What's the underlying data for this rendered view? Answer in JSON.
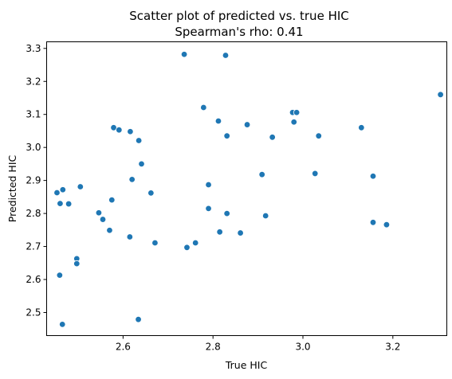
{
  "chart_data": {
    "type": "scatter",
    "title": "Scatter plot of predicted vs. true HIC",
    "subtitle": "Spearman's rho: 0.41",
    "xlabel": "True HIC",
    "ylabel": "Predicted HIC",
    "xlim": [
      2.43,
      3.32
    ],
    "ylim": [
      2.43,
      3.32
    ],
    "xticks": [
      2.6,
      2.8,
      3.0,
      3.2
    ],
    "xtick_labels": [
      "2.6",
      "2.8",
      "3.0",
      "3.2"
    ],
    "yticks": [
      2.5,
      2.6,
      2.7,
      2.8,
      2.9,
      3.0,
      3.1,
      3.2,
      3.3
    ],
    "ytick_labels": [
      "2.5",
      "2.6",
      "2.7",
      "2.8",
      "2.9",
      "3.0",
      "3.1",
      "3.2",
      "3.3"
    ],
    "grid": false,
    "marker_color": "#1f77b4",
    "points": [
      {
        "x": 2.453,
        "y": 2.863
      },
      {
        "x": 2.46,
        "y": 2.83
      },
      {
        "x": 2.466,
        "y": 2.872
      },
      {
        "x": 2.479,
        "y": 2.829
      },
      {
        "x": 2.459,
        "y": 2.613
      },
      {
        "x": 2.465,
        "y": 2.464
      },
      {
        "x": 2.497,
        "y": 2.663
      },
      {
        "x": 2.497,
        "y": 2.648
      },
      {
        "x": 2.505,
        "y": 2.881
      },
      {
        "x": 2.546,
        "y": 2.802
      },
      {
        "x": 2.555,
        "y": 2.782
      },
      {
        "x": 2.57,
        "y": 2.749
      },
      {
        "x": 2.575,
        "y": 2.841
      },
      {
        "x": 2.579,
        "y": 3.06
      },
      {
        "x": 2.591,
        "y": 3.053
      },
      {
        "x": 2.616,
        "y": 3.048
      },
      {
        "x": 2.62,
        "y": 2.903
      },
      {
        "x": 2.615,
        "y": 2.729
      },
      {
        "x": 2.635,
        "y": 3.021
      },
      {
        "x": 2.641,
        "y": 2.95
      },
      {
        "x": 2.634,
        "y": 2.479
      },
      {
        "x": 2.662,
        "y": 2.862
      },
      {
        "x": 2.671,
        "y": 2.711
      },
      {
        "x": 2.736,
        "y": 3.282
      },
      {
        "x": 2.742,
        "y": 2.697
      },
      {
        "x": 2.761,
        "y": 2.711
      },
      {
        "x": 2.779,
        "y": 3.121
      },
      {
        "x": 2.79,
        "y": 2.887
      },
      {
        "x": 2.79,
        "y": 2.815
      },
      {
        "x": 2.812,
        "y": 3.08
      },
      {
        "x": 2.815,
        "y": 2.744
      },
      {
        "x": 2.828,
        "y": 3.279
      },
      {
        "x": 2.831,
        "y": 3.035
      },
      {
        "x": 2.831,
        "y": 2.8
      },
      {
        "x": 2.861,
        "y": 2.741
      },
      {
        "x": 2.876,
        "y": 3.069
      },
      {
        "x": 2.909,
        "y": 2.918
      },
      {
        "x": 2.917,
        "y": 2.793
      },
      {
        "x": 2.932,
        "y": 3.031
      },
      {
        "x": 2.977,
        "y": 3.106
      },
      {
        "x": 2.986,
        "y": 3.106
      },
      {
        "x": 2.98,
        "y": 3.077
      },
      {
        "x": 3.027,
        "y": 2.921
      },
      {
        "x": 3.035,
        "y": 3.035
      },
      {
        "x": 3.13,
        "y": 3.06
      },
      {
        "x": 3.156,
        "y": 2.913
      },
      {
        "x": 3.156,
        "y": 2.773
      },
      {
        "x": 3.186,
        "y": 2.766
      },
      {
        "x": 3.306,
        "y": 3.16
      }
    ]
  }
}
